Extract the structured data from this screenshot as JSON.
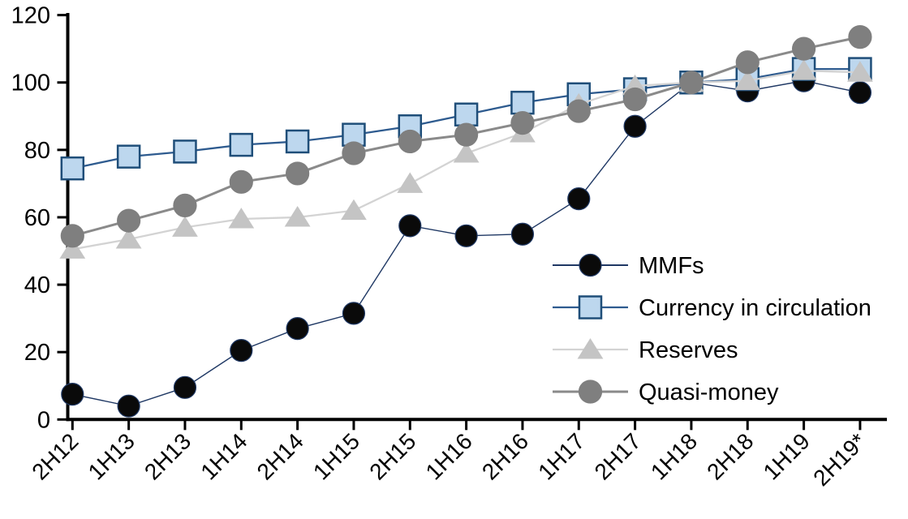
{
  "chart_data": {
    "type": "line",
    "title": "",
    "xlabel": "",
    "ylabel": "",
    "grid": false,
    "legend_position": "inside-right",
    "axis_color": "#000000",
    "background_color": "#ffffff",
    "ylim": [
      0,
      120
    ],
    "yticks": [
      0,
      20,
      40,
      60,
      80,
      100,
      120
    ],
    "categories": [
      "2H12",
      "1H13",
      "2H13",
      "1H14",
      "2H14",
      "1H15",
      "2H15",
      "1H16",
      "2H16",
      "1H17",
      "2H17",
      "1H18",
      "2H18",
      "1H19",
      "2H19*"
    ],
    "series": [
      {
        "name": "MMFs",
        "marker": "circle",
        "marker_fill": "#0a0a0a",
        "marker_stroke": "#1F3864",
        "marker_size": 27,
        "line_color": "#1F3864",
        "line_width": 1.4,
        "values": [
          7.5,
          4,
          9.5,
          20.5,
          27,
          31.5,
          57.5,
          54.5,
          55,
          65.5,
          87,
          100,
          97.5,
          100.5,
          97
        ]
      },
      {
        "name": "Currency in circulation",
        "marker": "square",
        "marker_fill": "#BDD7EE",
        "marker_stroke": "#1F4E79",
        "marker_size": 27,
        "line_color": "#2E5B8F",
        "line_width": 2.3,
        "values": [
          74.5,
          78,
          79.5,
          81.5,
          82.5,
          84.5,
          87,
          90.5,
          94,
          96.5,
          98,
          100,
          101,
          104,
          104
        ]
      },
      {
        "name": "Reserves",
        "marker": "triangle",
        "marker_fill": "#C4C4C4",
        "marker_stroke": "#C4C4C4",
        "marker_size": 30,
        "line_color": "#D3D3D3",
        "line_width": 2.3,
        "values": [
          50.5,
          53.5,
          57,
          59.5,
          60,
          62,
          70,
          79,
          85,
          93.5,
          99,
          100,
          100.5,
          103.5,
          103
        ]
      },
      {
        "name": "Quasi-money",
        "marker": "circle",
        "marker_fill": "#7F7F7F",
        "marker_stroke": "#7F7F7F",
        "marker_size": 28,
        "line_color": "#8A8A8A",
        "line_width": 3,
        "values": [
          54.5,
          59,
          63.5,
          70.5,
          73,
          79,
          82.5,
          84.5,
          88,
          91.5,
          95,
          100,
          106,
          110,
          113.5
        ]
      }
    ]
  }
}
